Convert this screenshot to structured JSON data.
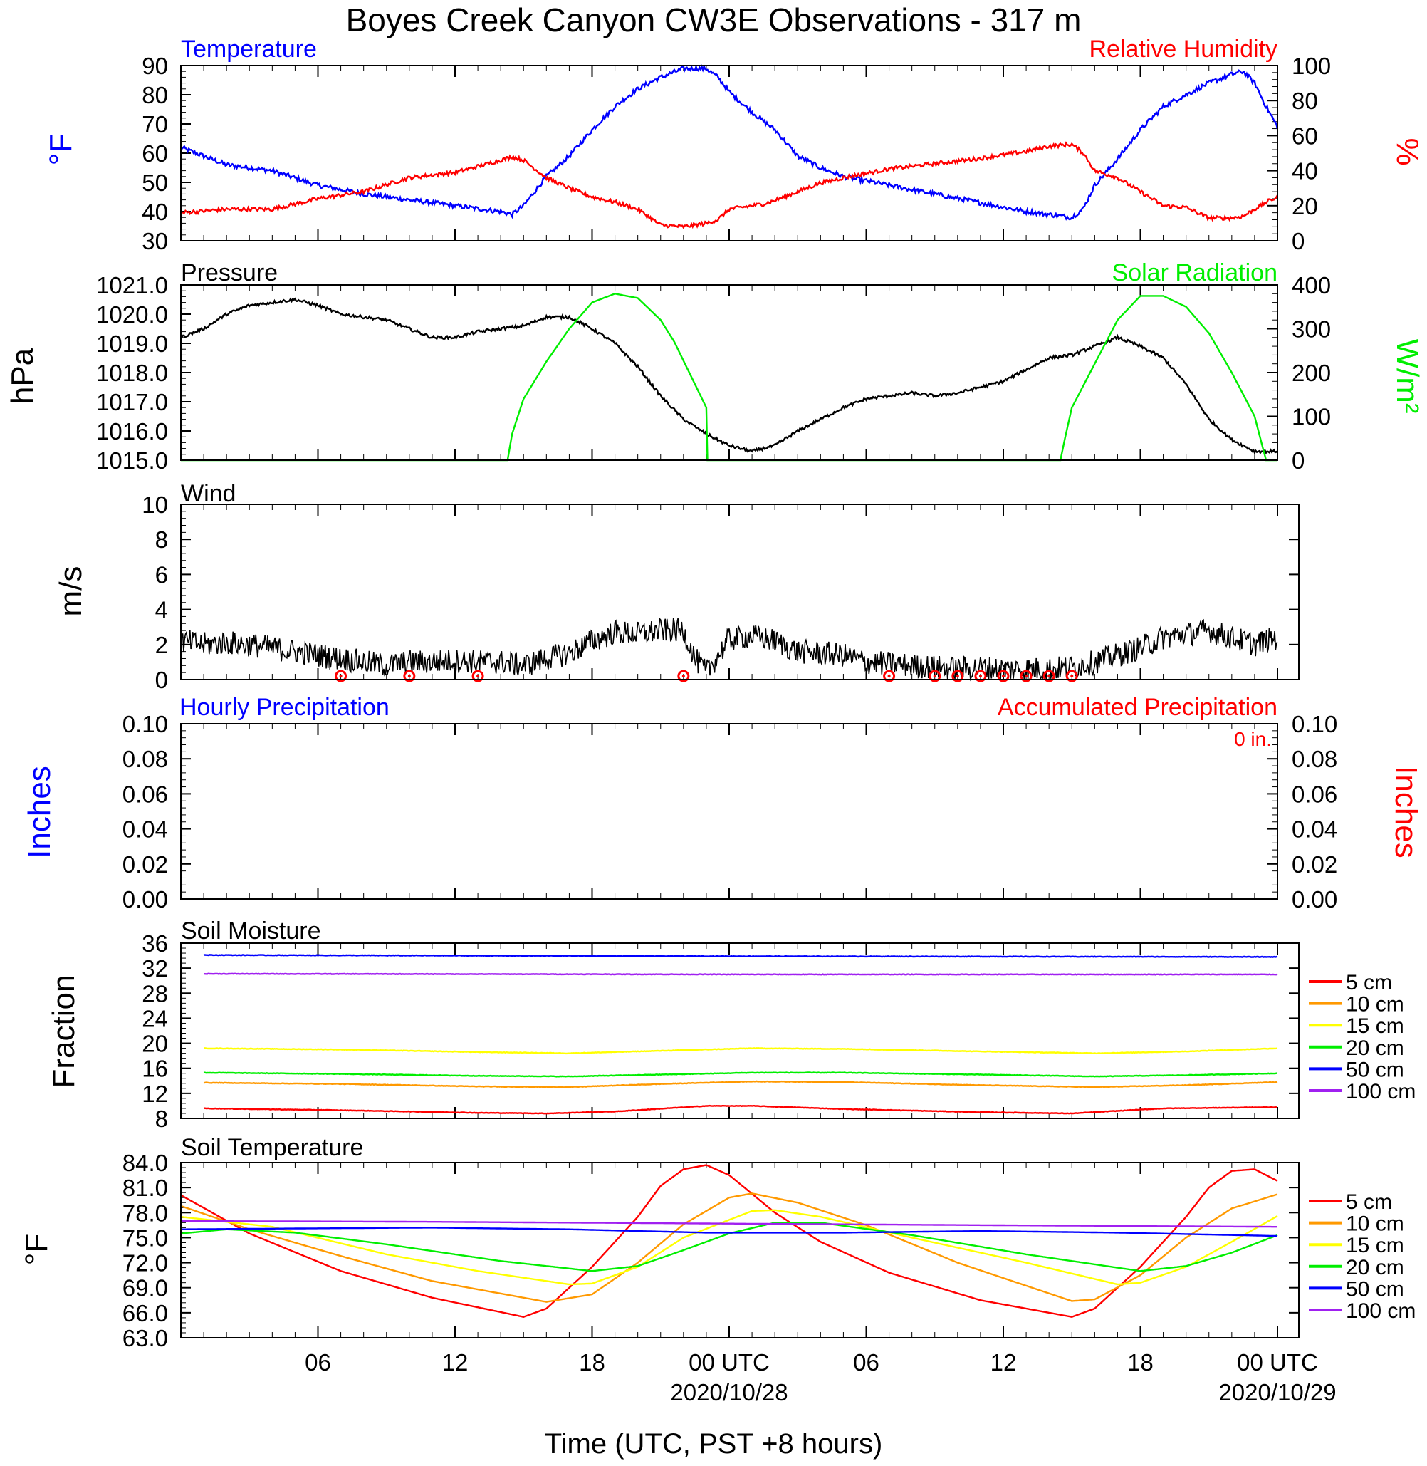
{
  "page": {
    "title": "Boyes Creek Canyon CW3E Observations - 317 m",
    "x_title": "Time (UTC, PST +8 hours)",
    "x_ticks": [
      "06",
      "12",
      "18",
      "00 UTC",
      "06",
      "12",
      "18",
      "00 UTC"
    ],
    "x_dates": [
      "2020/10/28",
      "2020/10/29"
    ]
  },
  "colors": {
    "blue": "#0000ff",
    "red": "#ff0000",
    "green": "#00ee00",
    "orange": "#ff9900",
    "yellow": "#ffff00",
    "purple": "#a020f0",
    "black": "#000000"
  },
  "chart_data": [
    {
      "type": "line",
      "id": "temp_rh",
      "title_left": "Temperature",
      "title_right": "Relative Humidity",
      "ylabel_left": "°F",
      "ylabel_right": "%",
      "ylim_left": [
        30,
        90
      ],
      "yticks_left": [
        "90",
        "80",
        "70",
        "60",
        "50",
        "40",
        "30"
      ],
      "ylim_right": [
        0,
        100
      ],
      "yticks_right": [
        "100",
        "80",
        "60",
        "40",
        "20",
        "0"
      ],
      "x_hours": [
        1,
        3,
        5,
        7,
        9,
        11,
        13,
        15,
        15.5,
        16,
        17,
        18,
        19,
        20,
        21,
        22,
        23,
        24,
        24.5,
        25,
        26,
        26.5,
        27,
        28,
        29,
        30,
        32,
        34,
        36,
        38,
        39,
        40,
        40.5,
        41,
        42,
        43,
        44,
        45,
        46,
        47,
        47.5,
        48,
        48.5,
        49
      ],
      "series": [
        {
          "name": "Temperature",
          "axis": "left",
          "color": "blue",
          "values": [
            62,
            56,
            54,
            49,
            46,
            44,
            42,
            40,
            39,
            42,
            52,
            59,
            68,
            76,
            82,
            86,
            89,
            89,
            86,
            81,
            74,
            71,
            68,
            59,
            55,
            52,
            49,
            46,
            43,
            40,
            39,
            38,
            41,
            49,
            58,
            68,
            76,
            80,
            84,
            87,
            88,
            84,
            76,
            69
          ]
        },
        {
          "name": "Relative Humidity",
          "axis": "right",
          "color": "red",
          "values": [
            16,
            18,
            18,
            24,
            28,
            36,
            39,
            46,
            48,
            46,
            36,
            30,
            25,
            22,
            18,
            9,
            8,
            10,
            12,
            18,
            20,
            21,
            23,
            28,
            33,
            36,
            41,
            44,
            47,
            51,
            54,
            55,
            50,
            40,
            36,
            28,
            20,
            19,
            13,
            13,
            14,
            18,
            22,
            25
          ]
        }
      ]
    },
    {
      "type": "line",
      "id": "pressure_solar",
      "title_left": "Pressure",
      "title_right": "Solar Radiation",
      "ylabel_left": "hPa",
      "ylabel_right": "W/m²",
      "ylim_left": [
        1015.0,
        1021.0
      ],
      "yticks_left": [
        "1021.0",
        "1020.0",
        "1019.0",
        "1018.0",
        "1017.0",
        "1016.0",
        "1015.0"
      ],
      "ylim_right": [
        0,
        400
      ],
      "yticks_right": [
        "400",
        "300",
        "200",
        "100",
        "0"
      ],
      "series": [
        {
          "name": "Pressure",
          "axis": "left",
          "color": "black",
          "x": [
            1,
            2,
            3,
            4,
            5,
            6,
            7,
            8,
            9,
            10,
            11,
            12,
            13,
            14,
            15,
            16,
            17,
            18,
            19,
            20,
            21,
            22,
            23,
            24,
            25,
            26,
            27,
            28,
            29,
            30,
            31,
            32,
            33,
            34,
            35,
            36,
            37,
            38,
            39,
            40,
            41,
            42,
            43,
            44,
            45,
            46,
            47,
            48,
            49
          ],
          "values": [
            1019.2,
            1019.5,
            1020.0,
            1020.3,
            1020.4,
            1020.5,
            1020.3,
            1020.0,
            1019.9,
            1019.8,
            1019.5,
            1019.2,
            1019.2,
            1019.4,
            1019.5,
            1019.6,
            1019.9,
            1019.9,
            1019.5,
            1019.0,
            1018.2,
            1017.2,
            1016.4,
            1015.9,
            1015.5,
            1015.3,
            1015.5,
            1016.0,
            1016.4,
            1016.8,
            1017.1,
            1017.2,
            1017.3,
            1017.2,
            1017.3,
            1017.5,
            1017.7,
            1018.1,
            1018.5,
            1018.6,
            1018.9,
            1019.2,
            1018.9,
            1018.5,
            1017.6,
            1016.4,
            1015.7,
            1015.3,
            1015.3
          ]
        },
        {
          "name": "Solar Radiation",
          "axis": "right",
          "color": "green",
          "x": [
            1,
            15.3,
            15.5,
            16,
            17,
            18,
            19,
            20,
            21,
            22,
            22.6,
            24.0,
            24.05,
            39.5,
            39.7,
            40,
            41,
            42,
            43,
            44,
            45,
            46,
            47,
            48,
            48.5,
            49
          ],
          "values": [
            0,
            0,
            60,
            140,
            225,
            300,
            360,
            380,
            370,
            320,
            270,
            120,
            0,
            0,
            50,
            120,
            220,
            320,
            375,
            375,
            350,
            290,
            200,
            100,
            0,
            0
          ]
        }
      ]
    },
    {
      "type": "line",
      "id": "wind",
      "title_left": "Wind",
      "ylabel_left": "m/s",
      "ylim_left": [
        0,
        10
      ],
      "yticks_left": [
        "10",
        "8",
        "6",
        "4",
        "2",
        "0"
      ],
      "series": [
        {
          "name": "Wind",
          "axis": "left",
          "color": "black",
          "x": [
            1,
            2,
            3,
            4,
            5,
            6,
            7,
            8,
            9,
            10,
            11,
            12,
            13,
            14,
            15,
            16,
            17,
            18,
            19,
            20,
            21,
            22,
            23,
            23.5,
            24,
            25,
            26,
            27,
            28,
            29,
            30,
            31,
            32,
            33,
            34,
            35,
            36,
            37,
            38,
            39,
            40,
            41,
            42,
            43,
            44,
            45,
            46,
            47,
            48,
            49
          ],
          "values": [
            2.2,
            2.0,
            2.1,
            2.0,
            1.8,
            1.6,
            1.4,
            1.2,
            1.0,
            0.8,
            1.0,
            1.0,
            1.1,
            1.0,
            1.0,
            0.8,
            1.2,
            1.5,
            2.2,
            2.7,
            2.6,
            2.8,
            2.8,
            1.2,
            0.4,
            2.3,
            2.5,
            2.2,
            1.6,
            1.5,
            1.4,
            1.0,
            0.9,
            0.8,
            0.7,
            0.6,
            0.7,
            0.6,
            0.6,
            0.6,
            0.7,
            1.0,
            1.4,
            1.8,
            2.4,
            2.6,
            2.8,
            2.4,
            2.0,
            2.4
          ]
        }
      ],
      "calm_markers_hours": [
        8,
        11,
        14,
        23,
        32,
        34,
        35,
        36,
        37,
        38,
        39,
        40
      ]
    },
    {
      "type": "line",
      "id": "precip",
      "title_left": "Hourly Precipitation",
      "title_right": "Accumulated Precipitation",
      "annotation": "0 in.",
      "ylabel_left": "Inches",
      "ylabel_right": "Inches",
      "ylim_left": [
        0.0,
        0.1
      ],
      "yticks_left": [
        "0.10",
        "0.08",
        "0.06",
        "0.04",
        "0.02",
        "0.00"
      ],
      "ylim_right": [
        0.0,
        0.1
      ],
      "yticks_right": [
        "0.10",
        "0.08",
        "0.06",
        "0.04",
        "0.02",
        "0.00"
      ],
      "series": [
        {
          "name": "Hourly Precipitation",
          "axis": "left",
          "color": "blue",
          "x": [
            1,
            49
          ],
          "values": [
            0,
            0
          ]
        },
        {
          "name": "Accumulated Precipitation",
          "axis": "right",
          "color": "red",
          "x": [
            1,
            49
          ],
          "values": [
            0,
            0
          ]
        }
      ]
    },
    {
      "type": "line",
      "id": "soil_moisture",
      "title_left": "Soil Moisture",
      "ylabel_left": "Fraction",
      "ylim_left": [
        8,
        36
      ],
      "yticks_left": [
        "36",
        "32",
        "28",
        "24",
        "20",
        "16",
        "12",
        "8"
      ],
      "legend": [
        "5 cm",
        "10 cm",
        "15 cm",
        "20 cm",
        "50 cm",
        "100 cm"
      ],
      "series": [
        {
          "name": "5 cm",
          "color": "red",
          "x": [
            2,
            8,
            14,
            17,
            20,
            24,
            26,
            30,
            36,
            40,
            44,
            49
          ],
          "values": [
            9.6,
            9.3,
            8.9,
            8.8,
            9.1,
            10.0,
            10.0,
            9.5,
            9.0,
            8.8,
            9.6,
            9.8
          ]
        },
        {
          "name": "10 cm",
          "color": "orange",
          "x": [
            2,
            8,
            14,
            18,
            22,
            26,
            30,
            36,
            41,
            45,
            49
          ],
          "values": [
            13.7,
            13.5,
            13.1,
            13.0,
            13.5,
            13.9,
            13.8,
            13.3,
            13.0,
            13.3,
            13.8
          ]
        },
        {
          "name": "15 cm",
          "color": "yellow",
          "x": [
            2,
            8,
            14,
            18,
            22,
            26,
            30,
            36,
            41,
            45,
            49
          ],
          "values": [
            19.2,
            19.0,
            18.6,
            18.4,
            18.8,
            19.2,
            19.1,
            18.7,
            18.4,
            18.7,
            19.2
          ]
        },
        {
          "name": "20 cm",
          "color": "green",
          "x": [
            2,
            8,
            14,
            18,
            22,
            26,
            30,
            36,
            41,
            45,
            49
          ],
          "values": [
            15.3,
            15.1,
            14.8,
            14.7,
            15.0,
            15.3,
            15.3,
            15.0,
            14.7,
            14.9,
            15.2
          ]
        },
        {
          "name": "50 cm",
          "color": "blue",
          "x": [
            2,
            26,
            49
          ],
          "values": [
            34.1,
            33.9,
            33.8
          ]
        },
        {
          "name": "100 cm",
          "color": "purple",
          "x": [
            2,
            26,
            49
          ],
          "values": [
            31.1,
            31.0,
            31.0
          ]
        }
      ]
    },
    {
      "type": "line",
      "id": "soil_temp",
      "title_left": "Soil Temperature",
      "ylabel_left": "°F",
      "ylim_left": [
        63.0,
        84.0
      ],
      "yticks_left": [
        "84.0",
        "81.0",
        "78.0",
        "75.0",
        "72.0",
        "69.0",
        "66.0",
        "63.0"
      ],
      "legend": [
        "5 cm",
        "10 cm",
        "15 cm",
        "20 cm",
        "50 cm",
        "100 cm"
      ],
      "series": [
        {
          "name": "5 cm",
          "color": "red",
          "x": [
            1,
            4,
            8,
            12,
            16,
            17,
            19,
            21,
            22,
            23,
            24,
            25,
            27,
            29,
            32,
            36,
            40,
            41,
            43,
            45,
            46,
            47,
            48,
            49
          ],
          "values": [
            80.1,
            75.5,
            71.0,
            67.8,
            65.5,
            66.5,
            71.5,
            77.5,
            81.2,
            83.2,
            83.7,
            82.5,
            78.0,
            74.5,
            70.8,
            67.5,
            65.5,
            66.5,
            71.5,
            77.5,
            81.0,
            83.0,
            83.2,
            81.8
          ]
        },
        {
          "name": "10 cm",
          "color": "orange",
          "x": [
            1,
            4,
            8,
            12,
            17,
            19,
            21,
            23,
            25,
            26,
            28,
            31,
            35,
            40,
            41,
            43,
            45,
            47,
            49
          ],
          "values": [
            78.8,
            76.0,
            72.8,
            69.8,
            67.3,
            68.2,
            72.0,
            76.6,
            79.8,
            80.3,
            79.2,
            76.5,
            72.0,
            67.4,
            67.6,
            70.5,
            75.0,
            78.5,
            80.2
          ]
        },
        {
          "name": "15 cm",
          "color": "yellow",
          "x": [
            1,
            5,
            10,
            14,
            18,
            19,
            21,
            23,
            26,
            27,
            29,
            33,
            38,
            42,
            43,
            45,
            47,
            49
          ],
          "values": [
            77.5,
            76.3,
            73.0,
            71.0,
            69.4,
            69.5,
            71.5,
            75.0,
            78.2,
            78.3,
            77.5,
            75.0,
            72.0,
            69.4,
            69.6,
            71.5,
            74.5,
            77.6
          ]
        },
        {
          "name": "20 cm",
          "color": "green",
          "x": [
            1,
            3,
            6,
            10,
            15,
            19,
            21,
            23,
            25,
            27,
            29,
            33,
            38,
            43,
            45,
            47,
            49
          ],
          "values": [
            75.5,
            76.0,
            75.6,
            74.2,
            72.2,
            71.0,
            71.6,
            73.5,
            75.5,
            76.8,
            76.8,
            75.3,
            73.0,
            71.0,
            71.6,
            73.2,
            75.3
          ]
        },
        {
          "name": "50 cm",
          "color": "blue",
          "x": [
            1,
            6,
            12,
            18,
            24,
            30,
            36,
            42,
            49
          ],
          "values": [
            76.0,
            76.1,
            76.2,
            76.0,
            75.6,
            75.6,
            75.8,
            75.6,
            75.2
          ]
        },
        {
          "name": "100 cm",
          "color": "purple",
          "x": [
            1,
            12,
            24,
            36,
            49
          ],
          "values": [
            77.0,
            76.9,
            76.7,
            76.5,
            76.3
          ]
        }
      ]
    }
  ]
}
